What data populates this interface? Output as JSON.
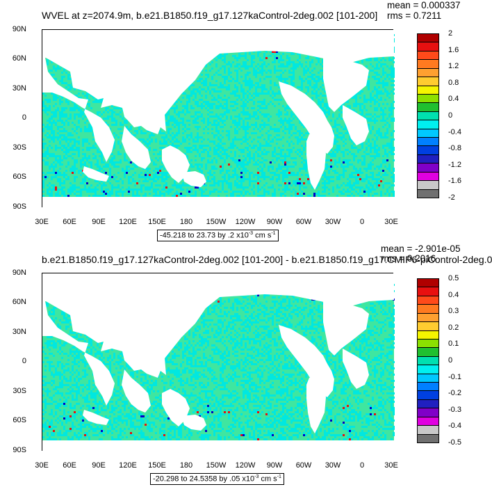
{
  "panels": [
    {
      "title": "WVEL at z=2074.9m, b.e21.B1850.f19_g17.127kaControl-2deg.002 [101-200]",
      "stats": {
        "mean": "mean = 0.000337",
        "rms": "rms = 0.7211"
      },
      "range_label": {
        "text": "-45.218 to 23.73 by .2 x10",
        "exp": "-3",
        "unit": " cm s",
        "unit_exp": "-1"
      },
      "colorbar_labels": [
        "2",
        "1.6",
        "1.2",
        "0.8",
        "0.4",
        "0",
        "-0.4",
        "-0.8",
        "-1.2",
        "-1.6",
        "-2"
      ]
    },
    {
      "title": "b.e21.B1850.f19_g17.127kaControl-2deg.002 [101-200] - b.e21.B1850.f19_g17.CMIP6-piControl-2deg.0",
      "stats": {
        "mean": "mean = -2.901e-05",
        "rms": "rms = 0.2016"
      },
      "range_label": {
        "text": "-20.298 to 24.5358 by .05 x10",
        "exp": "-3",
        "unit": " cm s",
        "unit_exp": "-1"
      },
      "colorbar_labels": [
        "0.5",
        "0.4",
        "0.3",
        "0.2",
        "0.1",
        "0",
        "-0.1",
        "-0.2",
        "-0.3",
        "-0.4",
        "-0.5"
      ]
    }
  ],
  "lat_labels": [
    "90N",
    "60N",
    "30N",
    "0",
    "30S",
    "60S",
    "90S"
  ],
  "lon_labels": [
    "30E",
    "60E",
    "90E",
    "120E",
    "150E",
    "180",
    "150W",
    "120W",
    "90W",
    "60W",
    "30W",
    "0",
    "30E"
  ],
  "colorbar_colors": [
    "#b00000",
    "#e81010",
    "#ff4a1a",
    "#ff7a20",
    "#ffa030",
    "#ffcc30",
    "#f5f500",
    "#8ce000",
    "#20c030",
    "#00e0b0",
    "#00f0f0",
    "#00c8ff",
    "#0080ff",
    "#0040e0",
    "#2020c0",
    "#8000c8",
    "#e000e0",
    "#c8c8c8",
    "#707070"
  ],
  "map_colors": {
    "ocean_main": "#3fe6a0",
    "ocean_alt": "#00e8e0",
    "land": "#ffffff",
    "positive": "#e81010",
    "negative": "#0000c8"
  }
}
